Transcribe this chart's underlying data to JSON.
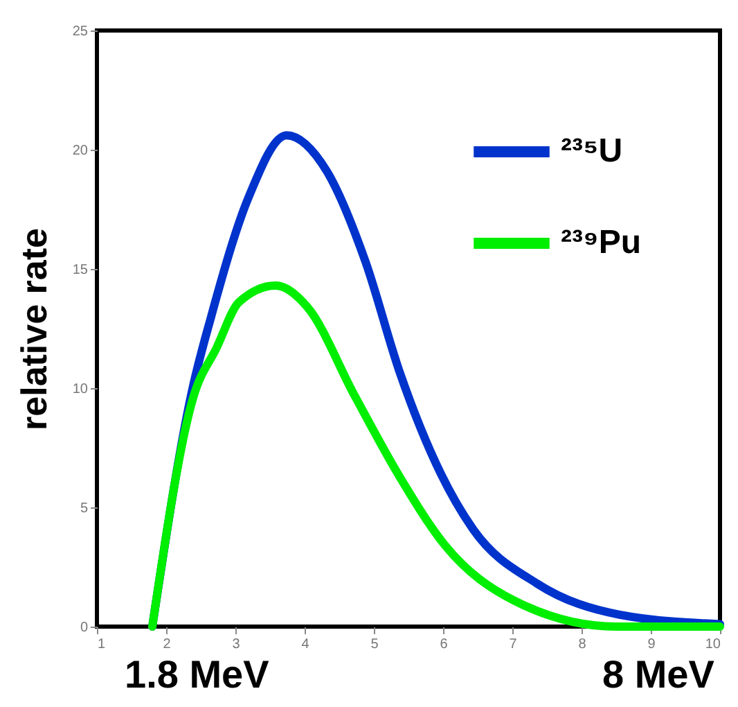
{
  "chart_data": {
    "type": "line",
    "ylabel": "relative rate",
    "annotations": [
      "1.8 MeV",
      "8 MeV"
    ],
    "series": [
      {
        "name": "²³⁵U",
        "color": "#0033cc",
        "x": [
          1.8,
          2.39,
          2.65,
          3.19,
          3.74,
          4.32,
          4.88,
          5.37,
          5.97,
          6.43,
          7.36,
          8.55,
          10
        ],
        "values": [
          0,
          10.1,
          13.0,
          18.0,
          20.6,
          19.1,
          15.3,
          10.7,
          6.4,
          4.1,
          1.8,
          0.5,
          0.1
        ]
      },
      {
        "name": "²³⁹Pu",
        "color": "#00ee00",
        "x": [
          1.8,
          2.39,
          2.73,
          3.05,
          3.58,
          4.04,
          4.72,
          5.37,
          6.03,
          7.02,
          8.5,
          10
        ],
        "values": [
          0,
          9.6,
          11.7,
          13.6,
          14.3,
          13.4,
          9.7,
          6.3,
          3.4,
          1.1,
          0,
          0
        ]
      }
    ],
    "xlim": [
      1,
      10
    ],
    "xticks": [
      1,
      2,
      3,
      4,
      5,
      6,
      7,
      8,
      9,
      10
    ],
    "ylim": [
      0,
      25
    ],
    "yticks": [
      0,
      5,
      10,
      15,
      20,
      25
    ],
    "legend": "top right",
    "marker": "none",
    "line_style": "solid",
    "grid": false
  }
}
